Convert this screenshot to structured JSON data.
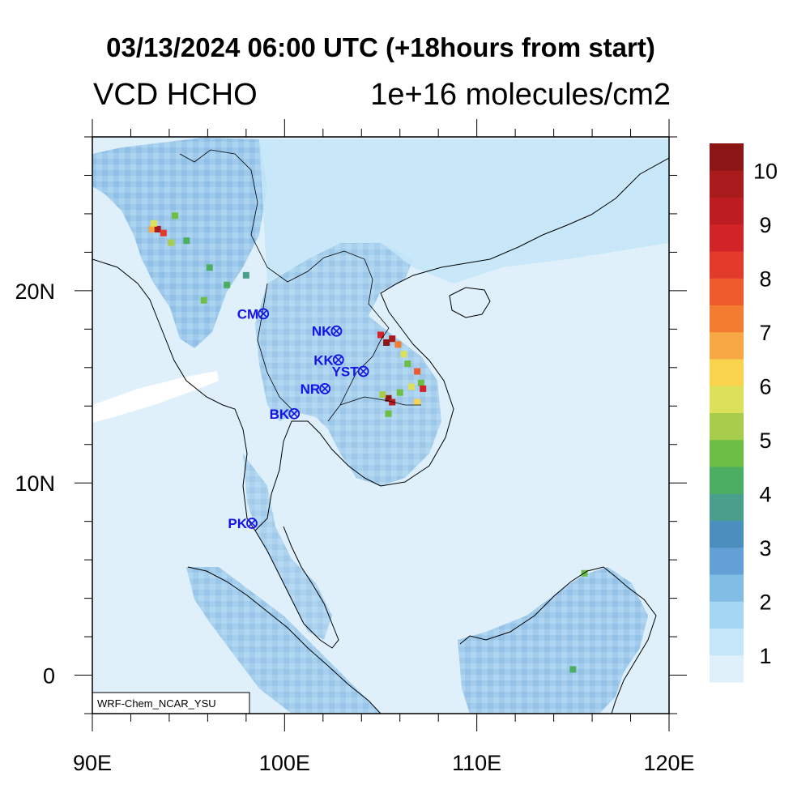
{
  "title": "03/13/2024 06:00 UTC (+18hours from start)",
  "variable": "VCD HCHO",
  "units": "1e+16 molecules/cm2",
  "credit": "WRF-Chem_NCAR_YSU",
  "map_extent": {
    "lon_min": 90,
    "lon_max": 120,
    "lat_min": -2,
    "lat_max": 28
  },
  "x_ticks": [
    {
      "lon": 90,
      "label": "90E"
    },
    {
      "lon": 100,
      "label": "100E"
    },
    {
      "lon": 110,
      "label": "110E"
    },
    {
      "lon": 120,
      "label": "120E"
    }
  ],
  "y_ticks": [
    {
      "lat": 0,
      "label": "0"
    },
    {
      "lat": 10,
      "label": "10N"
    },
    {
      "lat": 20,
      "label": "20N"
    }
  ],
  "colorbar": {
    "colors": [
      "#dff0fb",
      "#c5e6f8",
      "#a5d7f3",
      "#82bde6",
      "#63a0d6",
      "#4c8fbf",
      "#4a9f8c",
      "#4cae62",
      "#6cbf44",
      "#a8cc4c",
      "#dde05a",
      "#fad34e",
      "#f7a844",
      "#f47c30",
      "#ee5a2c",
      "#e23a2b",
      "#d22328",
      "#bd1c22",
      "#a81a1c",
      "#8c1515"
    ],
    "labels": [
      {
        "value": 1,
        "text": "1"
      },
      {
        "value": 2,
        "text": "2"
      },
      {
        "value": 3,
        "text": "3"
      },
      {
        "value": 4,
        "text": "4"
      },
      {
        "value": 5,
        "text": "5"
      },
      {
        "value": 6,
        "text": "6"
      },
      {
        "value": 7,
        "text": "7"
      },
      {
        "value": 8,
        "text": "8"
      },
      {
        "value": 9,
        "text": "9"
      },
      {
        "value": 10,
        "text": "10"
      }
    ]
  },
  "sites": [
    {
      "name": "CM",
      "lon": 98.9,
      "lat": 18.8
    },
    {
      "name": "NK",
      "lon": 102.7,
      "lat": 17.9
    },
    {
      "name": "KK",
      "lon": 102.8,
      "lat": 16.4
    },
    {
      "name": "YST",
      "lon": 104.1,
      "lat": 15.8
    },
    {
      "name": "NR",
      "lon": 102.1,
      "lat": 14.9
    },
    {
      "name": "BK",
      "lon": 100.5,
      "lat": 13.6
    },
    {
      "name": "PK",
      "lon": 98.3,
      "lat": 7.9
    }
  ],
  "hotspots": [
    {
      "lon": 93.1,
      "lat": 23.2,
      "value": 6.5
    },
    {
      "lon": 93.4,
      "lat": 23.2,
      "value": 9.5
    },
    {
      "lon": 93.7,
      "lat": 23.0,
      "value": 8.0
    },
    {
      "lon": 93.2,
      "lat": 23.5,
      "value": 5.5
    },
    {
      "lon": 94.1,
      "lat": 22.5,
      "value": 5.0
    },
    {
      "lon": 94.3,
      "lat": 23.9,
      "value": 4.5
    },
    {
      "lon": 94.9,
      "lat": 22.6,
      "value": 4.0
    },
    {
      "lon": 96.1,
      "lat": 21.2,
      "value": 4.0
    },
    {
      "lon": 95.8,
      "lat": 19.5,
      "value": 4.5
    },
    {
      "lon": 97.0,
      "lat": 20.3,
      "value": 4.0
    },
    {
      "lon": 98.0,
      "lat": 20.8,
      "value": 3.5
    },
    {
      "lon": 105.0,
      "lat": 17.7,
      "value": 8.5
    },
    {
      "lon": 105.3,
      "lat": 17.3,
      "value": 10.0
    },
    {
      "lon": 105.6,
      "lat": 17.5,
      "value": 9.5
    },
    {
      "lon": 105.9,
      "lat": 17.2,
      "value": 7.0
    },
    {
      "lon": 106.2,
      "lat": 16.7,
      "value": 5.5
    },
    {
      "lon": 106.4,
      "lat": 16.2,
      "value": 4.5
    },
    {
      "lon": 106.9,
      "lat": 15.8,
      "value": 7.5
    },
    {
      "lon": 107.1,
      "lat": 15.2,
      "value": 4.5
    },
    {
      "lon": 106.6,
      "lat": 15.0,
      "value": 5.5
    },
    {
      "lon": 107.2,
      "lat": 14.9,
      "value": 8.5
    },
    {
      "lon": 106.0,
      "lat": 14.7,
      "value": 4.5
    },
    {
      "lon": 105.4,
      "lat": 14.4,
      "value": 10.0
    },
    {
      "lon": 105.6,
      "lat": 14.2,
      "value": 9.0
    },
    {
      "lon": 105.1,
      "lat": 14.6,
      "value": 5.0
    },
    {
      "lon": 106.9,
      "lat": 14.2,
      "value": 6.0
    },
    {
      "lon": 105.4,
      "lat": 13.6,
      "value": 4.5
    },
    {
      "lon": 115.6,
      "lat": 5.3,
      "value": 4.5
    },
    {
      "lon": 115.0,
      "lat": 0.3,
      "value": 4.0
    }
  ]
}
